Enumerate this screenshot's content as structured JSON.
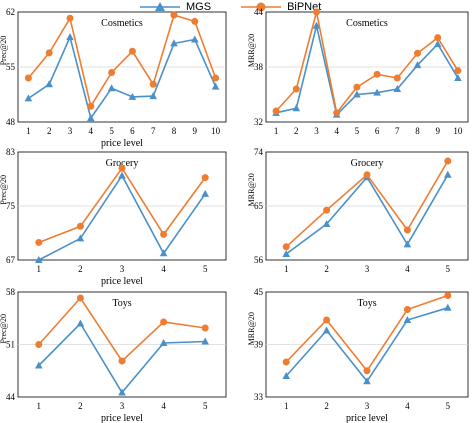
{
  "legend": {
    "mgs": "MGS",
    "bipnet": "BiPNet"
  },
  "colors": {
    "mgs": "#4a90c9",
    "bipnet": "#ee7d31"
  },
  "chart_data": [
    {
      "type": "line",
      "title": "Cosmetics",
      "ylabel": "Prec@20",
      "xlabel": "price level",
      "x": [
        1,
        2,
        3,
        4,
        5,
        6,
        7,
        8,
        9,
        10
      ],
      "ylim": [
        48,
        62
      ],
      "yticks": [
        48,
        55,
        62
      ],
      "series": [
        {
          "name": "MGS",
          "values": [
            51.0,
            52.8,
            58.8,
            48.5,
            52.3,
            51.2,
            51.3,
            58.0,
            58.5,
            52.5
          ]
        },
        {
          "name": "BiPNet",
          "values": [
            53.6,
            56.8,
            61.2,
            50.0,
            54.3,
            57.0,
            52.8,
            61.6,
            60.8,
            53.6
          ]
        }
      ]
    },
    {
      "type": "line",
      "title": "Cosmetics",
      "ylabel": "MRR@20",
      "xlabel": "",
      "x": [
        1,
        2,
        3,
        4,
        5,
        6,
        7,
        8,
        9,
        10
      ],
      "ylim": [
        32,
        44
      ],
      "yticks": [
        32,
        38,
        44
      ],
      "series": [
        {
          "name": "MGS",
          "values": [
            33.0,
            33.5,
            42.5,
            32.8,
            35.0,
            35.2,
            35.6,
            38.2,
            40.5,
            36.8
          ]
        },
        {
          "name": "BiPNet",
          "values": [
            33.2,
            35.6,
            44.0,
            33.0,
            35.8,
            37.2,
            36.8,
            39.5,
            41.2,
            37.6
          ]
        }
      ]
    },
    {
      "type": "line",
      "title": "Grocery",
      "ylabel": "Prec@20",
      "xlabel": "price level",
      "x": [
        1,
        2,
        3,
        4,
        5
      ],
      "ylim": [
        67,
        83
      ],
      "yticks": [
        67,
        75,
        83
      ],
      "series": [
        {
          "name": "MGS",
          "values": [
            67.0,
            70.2,
            79.5,
            68.0,
            76.8
          ]
        },
        {
          "name": "BiPNet",
          "values": [
            69.6,
            72.0,
            80.6,
            70.8,
            79.2
          ]
        }
      ]
    },
    {
      "type": "line",
      "title": "Grocery",
      "ylabel": "MRR@20",
      "xlabel": "",
      "x": [
        1,
        2,
        3,
        4,
        5
      ],
      "ylim": [
        56,
        74
      ],
      "yticks": [
        56,
        65,
        74
      ],
      "series": [
        {
          "name": "MGS",
          "values": [
            57.0,
            62.0,
            69.8,
            58.6,
            70.2
          ]
        },
        {
          "name": "BiPNet",
          "values": [
            58.2,
            64.3,
            70.2,
            61.0,
            72.5
          ]
        }
      ]
    },
    {
      "type": "line",
      "title": "Toys",
      "ylabel": "Prec@20",
      "xlabel": "price level",
      "x": [
        1,
        2,
        3,
        4,
        5
      ],
      "ylim": [
        44,
        58
      ],
      "yticks": [
        44,
        51,
        58
      ],
      "series": [
        {
          "name": "MGS",
          "values": [
            48.2,
            53.8,
            44.6,
            51.2,
            51.4
          ]
        },
        {
          "name": "BiPNet",
          "values": [
            51.0,
            57.2,
            48.8,
            54.0,
            53.2
          ]
        }
      ]
    },
    {
      "type": "line",
      "title": "Toys",
      "ylabel": "MRR@20",
      "xlabel": "price level",
      "x": [
        1,
        2,
        3,
        4,
        5
      ],
      "ylim": [
        33,
        45
      ],
      "yticks": [
        33,
        39,
        45
      ],
      "series": [
        {
          "name": "MGS",
          "values": [
            35.4,
            40.6,
            34.8,
            41.8,
            43.2
          ]
        },
        {
          "name": "BiPNet",
          "values": [
            37.0,
            41.8,
            36.0,
            43.0,
            44.6
          ]
        }
      ]
    }
  ]
}
